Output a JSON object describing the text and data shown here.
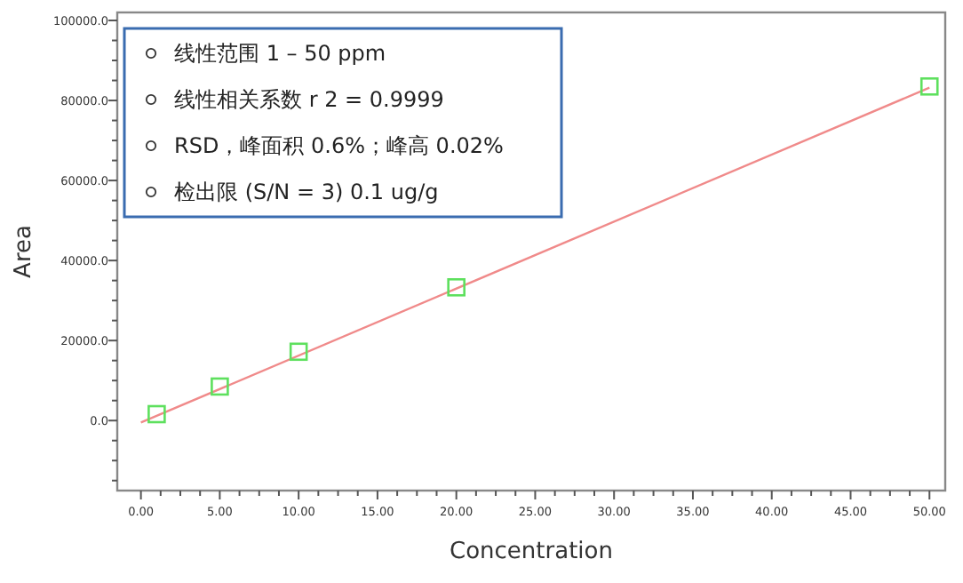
{
  "chart_data": {
    "type": "scatter",
    "xlabel": "Concentration",
    "ylabel": "Area",
    "xlim": [
      -1.5,
      51
    ],
    "ylim": [
      -17500,
      102000
    ],
    "xticks": [
      {
        "value": 0,
        "label": "0.00"
      },
      {
        "value": 5,
        "label": "5.00"
      },
      {
        "value": 10,
        "label": "10.00"
      },
      {
        "value": 15,
        "label": "15.00"
      },
      {
        "value": 20,
        "label": "20.00"
      },
      {
        "value": 25,
        "label": "25.00"
      },
      {
        "value": 30,
        "label": "30.00"
      },
      {
        "value": 35,
        "label": "35.00"
      },
      {
        "value": 40,
        "label": "40.00"
      },
      {
        "value": 45,
        "label": "45.00"
      },
      {
        "value": 50,
        "label": "50.00"
      }
    ],
    "yticks": [
      {
        "value": 0,
        "label": "0.0"
      },
      {
        "value": 20000,
        "label": "20000.0"
      },
      {
        "value": 40000,
        "label": "40000.0"
      },
      {
        "value": 60000,
        "label": "60000.0"
      },
      {
        "value": 80000,
        "label": "80000.0"
      },
      {
        "value": 100000,
        "label": "100000.0"
      }
    ],
    "grid": false,
    "series": [
      {
        "type": "line",
        "x": [
          0,
          50
        ],
        "values": [
          -500,
          83200
        ],
        "color": "#f08a8a"
      },
      {
        "marker": "square",
        "x": [
          1,
          5,
          10,
          20,
          50
        ],
        "values": [
          1600,
          8500,
          17200,
          33300,
          83500
        ],
        "color": "#5ee05e"
      }
    ],
    "annotations": [
      "线性范围 1 – 50 ppm",
      "线性相关系数 r 2 = 0.9999",
      "RSD，峰面积 0.6%；峰高 0.02%",
      "检出限 (S/N = 3) 0.1 ug/g"
    ]
  }
}
